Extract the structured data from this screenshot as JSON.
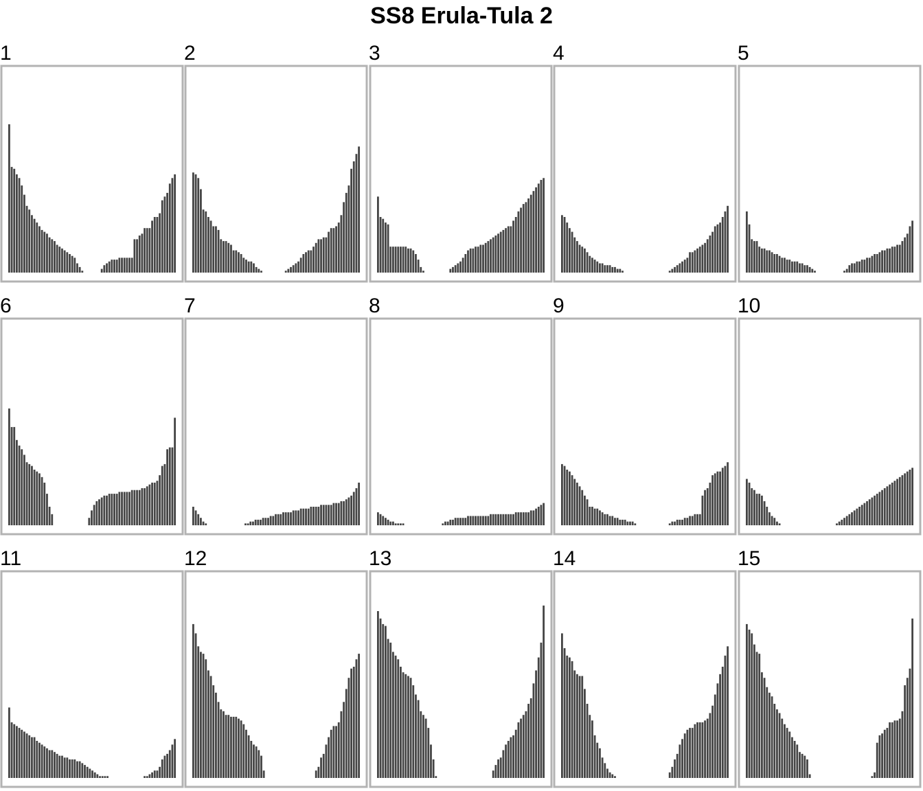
{
  "chart_data": {
    "type": "bar",
    "title": "SS8 Erula-Tula 2",
    "xlabel": "",
    "ylabel": "",
    "ylim": [
      0,
      1
    ],
    "grid": false,
    "legend": "none",
    "colors": {
      "bar": "#444444",
      "panel_border": "#b3b3b3",
      "background": "#ffffff"
    },
    "panels": [
      {
        "label": "1",
        "left_values": [
          0.8,
          0.57,
          0.56,
          0.53,
          0.51,
          0.47,
          0.42,
          0.36,
          0.34,
          0.31,
          0.29,
          0.27,
          0.25,
          0.23,
          0.22,
          0.21,
          0.19,
          0.18,
          0.17,
          0.15,
          0.14,
          0.13,
          0.12,
          0.11,
          0.1,
          0.09,
          0.08,
          0.05,
          0.03,
          0.01
        ],
        "right_values": [
          0.02,
          0.04,
          0.05,
          0.06,
          0.07,
          0.07,
          0.07,
          0.08,
          0.08,
          0.08,
          0.08,
          0.08,
          0.08,
          0.18,
          0.18,
          0.2,
          0.21,
          0.24,
          0.24,
          0.24,
          0.28,
          0.3,
          0.3,
          0.32,
          0.39,
          0.41,
          0.43,
          0.48,
          0.51,
          0.53
        ]
      },
      {
        "label": "2",
        "left_values": [
          0.54,
          0.53,
          0.51,
          0.45,
          0.34,
          0.33,
          0.3,
          0.28,
          0.25,
          0.25,
          0.23,
          0.18,
          0.17,
          0.17,
          0.16,
          0.15,
          0.12,
          0.12,
          0.11,
          0.1,
          0.08,
          0.07,
          0.06,
          0.06,
          0.05,
          0.03,
          0.02,
          0.01
        ],
        "right_values": [
          0.01,
          0.02,
          0.03,
          0.04,
          0.05,
          0.06,
          0.08,
          0.1,
          0.11,
          0.12,
          0.12,
          0.14,
          0.16,
          0.18,
          0.18,
          0.19,
          0.19,
          0.22,
          0.24,
          0.24,
          0.25,
          0.27,
          0.31,
          0.38,
          0.43,
          0.47,
          0.56,
          0.6,
          0.64,
          0.68
        ]
      },
      {
        "label": "3",
        "left_values": [
          0.41,
          0.3,
          0.29,
          0.27,
          0.26,
          0.14,
          0.14,
          0.14,
          0.14,
          0.14,
          0.14,
          0.14,
          0.13,
          0.13,
          0.12,
          0.1,
          0.07,
          0.03,
          0.01
        ],
        "right_values": [
          0.02,
          0.03,
          0.04,
          0.05,
          0.06,
          0.08,
          0.1,
          0.12,
          0.13,
          0.13,
          0.14,
          0.14,
          0.15,
          0.15,
          0.16,
          0.17,
          0.18,
          0.19,
          0.2,
          0.21,
          0.22,
          0.23,
          0.24,
          0.25,
          0.25,
          0.28,
          0.3,
          0.33,
          0.35,
          0.37,
          0.38,
          0.4,
          0.42,
          0.44,
          0.46,
          0.48,
          0.5,
          0.51
        ]
      },
      {
        "label": "4",
        "left_values": [
          0.31,
          0.3,
          0.27,
          0.24,
          0.22,
          0.19,
          0.17,
          0.15,
          0.14,
          0.13,
          0.11,
          0.09,
          0.08,
          0.07,
          0.06,
          0.05,
          0.05,
          0.04,
          0.04,
          0.04,
          0.03,
          0.03,
          0.02,
          0.02,
          0.01
        ],
        "right_values": [
          0.01,
          0.02,
          0.03,
          0.04,
          0.05,
          0.06,
          0.07,
          0.08,
          0.11,
          0.11,
          0.12,
          0.13,
          0.14,
          0.15,
          0.16,
          0.18,
          0.2,
          0.22,
          0.25,
          0.26,
          0.27,
          0.3,
          0.33,
          0.36
        ]
      },
      {
        "label": "5",
        "left_values": [
          0.33,
          0.26,
          0.18,
          0.17,
          0.17,
          0.14,
          0.13,
          0.13,
          0.12,
          0.12,
          0.11,
          0.1,
          0.1,
          0.09,
          0.08,
          0.08,
          0.07,
          0.07,
          0.06,
          0.06,
          0.06,
          0.05,
          0.05,
          0.04,
          0.04,
          0.03,
          0.02,
          0.01
        ],
        "right_values": [
          0.01,
          0.02,
          0.04,
          0.05,
          0.05,
          0.06,
          0.06,
          0.07,
          0.07,
          0.08,
          0.08,
          0.09,
          0.1,
          0.1,
          0.11,
          0.12,
          0.12,
          0.13,
          0.13,
          0.14,
          0.14,
          0.15,
          0.15,
          0.17,
          0.19,
          0.21,
          0.25,
          0.28
        ]
      },
      {
        "label": "6",
        "left_values": [
          0.63,
          0.53,
          0.53,
          0.46,
          0.43,
          0.41,
          0.38,
          0.34,
          0.33,
          0.32,
          0.3,
          0.29,
          0.28,
          0.26,
          0.23,
          0.17,
          0.1,
          0.06
        ],
        "right_values": [
          0.04,
          0.08,
          0.11,
          0.13,
          0.14,
          0.15,
          0.16,
          0.16,
          0.17,
          0.17,
          0.17,
          0.17,
          0.18,
          0.18,
          0.18,
          0.18,
          0.18,
          0.19,
          0.19,
          0.19,
          0.19,
          0.2,
          0.2,
          0.21,
          0.22,
          0.23,
          0.23,
          0.24,
          0.27,
          0.32,
          0.33,
          0.41,
          0.42,
          0.42,
          0.58
        ]
      },
      {
        "label": "7",
        "left_values": [
          0.1,
          0.08,
          0.06,
          0.04,
          0.02,
          0.01
        ],
        "right_values": [
          0.01,
          0.01,
          0.02,
          0.02,
          0.03,
          0.03,
          0.03,
          0.04,
          0.04,
          0.04,
          0.05,
          0.05,
          0.06,
          0.06,
          0.06,
          0.07,
          0.07,
          0.07,
          0.07,
          0.08,
          0.08,
          0.08,
          0.09,
          0.09,
          0.09,
          0.09,
          0.1,
          0.1,
          0.1,
          0.1,
          0.11,
          0.11,
          0.11,
          0.11,
          0.11,
          0.12,
          0.12,
          0.12,
          0.13,
          0.13,
          0.14,
          0.15,
          0.16,
          0.18,
          0.2,
          0.23
        ]
      },
      {
        "label": "8",
        "left_values": [
          0.07,
          0.06,
          0.05,
          0.04,
          0.03,
          0.02,
          0.02,
          0.01,
          0.01,
          0.01,
          0.01
        ],
        "right_values": [
          0.01,
          0.02,
          0.02,
          0.03,
          0.03,
          0.04,
          0.04,
          0.04,
          0.04,
          0.04,
          0.05,
          0.05,
          0.05,
          0.05,
          0.05,
          0.05,
          0.05,
          0.05,
          0.05,
          0.06,
          0.06,
          0.06,
          0.06,
          0.06,
          0.06,
          0.06,
          0.06,
          0.06,
          0.06,
          0.07,
          0.07,
          0.07,
          0.07,
          0.07,
          0.07,
          0.08,
          0.08,
          0.09,
          0.1,
          0.11,
          0.12
        ]
      },
      {
        "label": "9",
        "left_values": [
          0.33,
          0.32,
          0.3,
          0.29,
          0.27,
          0.25,
          0.23,
          0.21,
          0.19,
          0.16,
          0.14,
          0.1,
          0.1,
          0.09,
          0.09,
          0.08,
          0.07,
          0.06,
          0.06,
          0.05,
          0.05,
          0.04,
          0.04,
          0.03,
          0.03,
          0.03,
          0.02,
          0.02,
          0.02,
          0.01
        ],
        "right_values": [
          0.01,
          0.02,
          0.02,
          0.03,
          0.03,
          0.03,
          0.04,
          0.04,
          0.05,
          0.05,
          0.06,
          0.06,
          0.06,
          0.16,
          0.19,
          0.2,
          0.23,
          0.27,
          0.28,
          0.29,
          0.29,
          0.31,
          0.32,
          0.34
        ]
      },
      {
        "label": "10",
        "left_values": [
          0.25,
          0.23,
          0.2,
          0.19,
          0.17,
          0.17,
          0.16,
          0.13,
          0.1,
          0.07,
          0.05,
          0.04,
          0.02,
          0.01
        ],
        "right_values": [
          0.01,
          0.02,
          0.03,
          0.04,
          0.05,
          0.06,
          0.07,
          0.08,
          0.09,
          0.1,
          0.11,
          0.12,
          0.13,
          0.14,
          0.15,
          0.16,
          0.17,
          0.18,
          0.19,
          0.2,
          0.21,
          0.22,
          0.23,
          0.24,
          0.25,
          0.26,
          0.27,
          0.28,
          0.29,
          0.3,
          0.31
        ]
      },
      {
        "label": "11",
        "left_values": [
          0.38,
          0.3,
          0.29,
          0.28,
          0.27,
          0.26,
          0.25,
          0.24,
          0.23,
          0.22,
          0.22,
          0.2,
          0.19,
          0.18,
          0.17,
          0.16,
          0.15,
          0.15,
          0.14,
          0.13,
          0.12,
          0.12,
          0.11,
          0.11,
          0.1,
          0.1,
          0.1,
          0.09,
          0.09,
          0.08,
          0.07,
          0.06,
          0.05,
          0.04,
          0.03,
          0.02,
          0.01,
          0.01,
          0.01,
          0.01
        ],
        "right_values": [
          0.01,
          0.01,
          0.02,
          0.03,
          0.04,
          0.04,
          0.06,
          0.1,
          0.12,
          0.13,
          0.15,
          0.18,
          0.21
        ]
      },
      {
        "label": "12",
        "left_values": [
          0.83,
          0.78,
          0.71,
          0.68,
          0.67,
          0.64,
          0.58,
          0.55,
          0.5,
          0.46,
          0.41,
          0.37,
          0.36,
          0.34,
          0.34,
          0.33,
          0.33,
          0.33,
          0.32,
          0.31,
          0.29,
          0.26,
          0.23,
          0.2,
          0.18,
          0.17,
          0.15,
          0.12,
          0.04
        ],
        "right_values": [
          0.04,
          0.06,
          0.11,
          0.13,
          0.18,
          0.22,
          0.26,
          0.28,
          0.28,
          0.3,
          0.36,
          0.41,
          0.48,
          0.54,
          0.59,
          0.6,
          0.64,
          0.67
        ]
      },
      {
        "label": "13",
        "left_values": [
          0.9,
          0.86,
          0.83,
          0.82,
          0.75,
          0.73,
          0.68,
          0.66,
          0.64,
          0.6,
          0.57,
          0.56,
          0.55,
          0.54,
          0.5,
          0.45,
          0.42,
          0.36,
          0.34,
          0.32,
          0.27,
          0.18,
          0.1,
          0.01
        ],
        "right_values": [
          0.04,
          0.07,
          0.1,
          0.11,
          0.15,
          0.18,
          0.2,
          0.22,
          0.23,
          0.26,
          0.3,
          0.32,
          0.34,
          0.36,
          0.4,
          0.43,
          0.51,
          0.58,
          0.65,
          0.73,
          0.93
        ]
      },
      {
        "label": "14",
        "left_values": [
          0.78,
          0.7,
          0.66,
          0.65,
          0.63,
          0.58,
          0.56,
          0.55,
          0.55,
          0.48,
          0.4,
          0.34,
          0.31,
          0.23,
          0.19,
          0.16,
          0.11,
          0.08,
          0.05,
          0.03,
          0.02,
          0.01
        ],
        "right_values": [
          0.03,
          0.06,
          0.1,
          0.13,
          0.18,
          0.21,
          0.24,
          0.26,
          0.27,
          0.27,
          0.29,
          0.3,
          0.3,
          0.3,
          0.31,
          0.32,
          0.35,
          0.39,
          0.45,
          0.51,
          0.56,
          0.6,
          0.66,
          0.71
        ]
      },
      {
        "label": "15",
        "left_values": [
          0.83,
          0.8,
          0.78,
          0.72,
          0.68,
          0.67,
          0.57,
          0.54,
          0.49,
          0.46,
          0.44,
          0.4,
          0.37,
          0.35,
          0.32,
          0.29,
          0.27,
          0.25,
          0.22,
          0.2,
          0.18,
          0.14,
          0.13,
          0.12,
          0.1,
          0.02
        ],
        "right_values": [
          0.01,
          0.03,
          0.19,
          0.23,
          0.24,
          0.26,
          0.27,
          0.3,
          0.3,
          0.31,
          0.31,
          0.32,
          0.36,
          0.5,
          0.54,
          0.59,
          0.86
        ]
      }
    ]
  }
}
